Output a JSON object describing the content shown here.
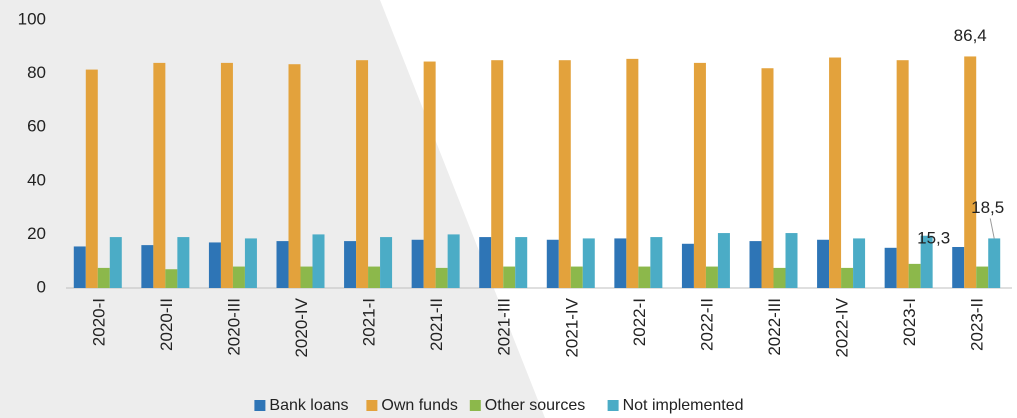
{
  "chart_data": {
    "type": "bar",
    "categories": [
      "2020-I",
      "2020-II",
      "2020-III",
      "2020-IV",
      "2021-I",
      "2021-II",
      "2021-III",
      "2021-IV",
      "2022-I",
      "2022-II",
      "2022-III",
      "2022-IV",
      "2023-I",
      "2023-II"
    ],
    "series": [
      {
        "name": "Bank loans",
        "color": "#2e75b6",
        "values": [
          15.5,
          16,
          17,
          17.5,
          17.5,
          18,
          19,
          18,
          18.5,
          16.5,
          17.5,
          18,
          15,
          15.3
        ],
        "value_labels": [
          null,
          null,
          null,
          null,
          null,
          null,
          null,
          null,
          null,
          null,
          null,
          null,
          null,
          "15,3"
        ]
      },
      {
        "name": "Own funds",
        "color": "#e3a23c",
        "values": [
          81.5,
          84,
          84,
          83.5,
          85,
          84.5,
          85,
          85,
          85.5,
          84,
          82,
          86,
          85,
          86.4
        ],
        "value_labels": [
          null,
          null,
          null,
          null,
          null,
          null,
          null,
          null,
          null,
          null,
          null,
          null,
          null,
          "86,4"
        ]
      },
      {
        "name": "Other sources",
        "color": "#8cb84b",
        "values": [
          7.5,
          7,
          8,
          8,
          8,
          7.5,
          8,
          8,
          8,
          8,
          7.5,
          7.5,
          9,
          8
        ]
      },
      {
        "name": "Not implemented",
        "color": "#4bacc6",
        "values": [
          19,
          19,
          18.5,
          20,
          19,
          20,
          19,
          18.5,
          19,
          20.5,
          20.5,
          18.5,
          19.5,
          18.5
        ],
        "value_labels": [
          null,
          null,
          null,
          null,
          null,
          null,
          null,
          null,
          null,
          null,
          null,
          null,
          null,
          "18,5"
        ]
      }
    ],
    "ylim": [
      0,
      100
    ],
    "yticks": [
      0,
      20,
      40,
      60,
      80,
      100
    ],
    "legend": "bottom"
  }
}
